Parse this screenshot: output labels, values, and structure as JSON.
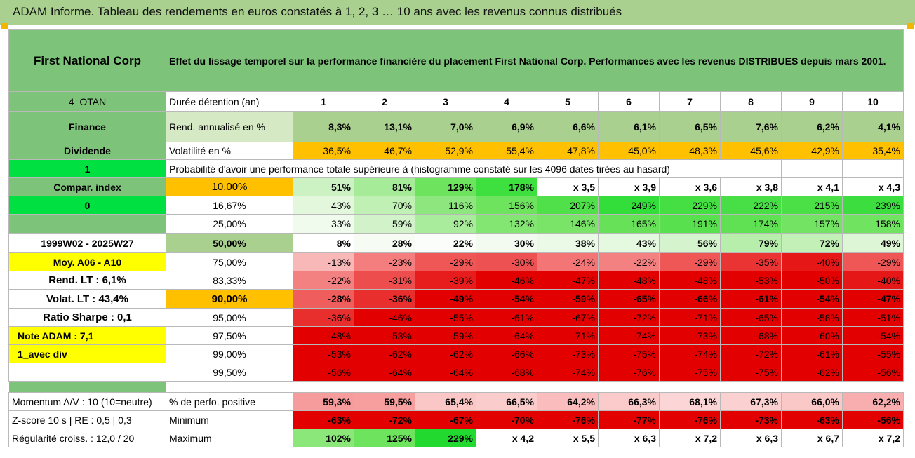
{
  "title": "ADAM Informe. Tableau des rendements en euros constatés à 1, 2, 3 … 10 ans avec les revenus connus distribués",
  "company": "First National Corp",
  "description": "Effet du lissage temporel sur la performance financière du placement First National Corp. Performances avec les revenus DISTRIBUES depuis mars 2001.",
  "left_labels": {
    "code": "4_OTAN",
    "sector": "Finance",
    "dividend": "Dividende",
    "one": "1",
    "compar": "Compar. index",
    "zero": "0",
    "period": "1999W02 - 2025W27",
    "moy": "Moy. A06 - A10",
    "rend_lt": "Rend. LT :    6,1%",
    "volat_lt": "Volat. LT :    43,4%",
    "sharpe": "Ratio Sharpe :    0,1",
    "note": "Note ADAM : 7,1",
    "avec_div": "1_avec div",
    "momentum": "Momentum A/V : 10 (10=neutre)",
    "zscore": "Z-score 10 s | RE : 0,5 | 0,3",
    "regularite": "Régularité croiss. : 12,0 / 20"
  },
  "row_labels": {
    "duree": "Durée détention (an)",
    "rend": "Rend. annualisé en %",
    "vol": "Volatilité en %",
    "proba": "Probabilité d'avoir une performance totale supérieure à (histogramme constaté sur les 4096 dates tirées au hasard)",
    "perfo": "% de perfo. positive",
    "min": "Minimum",
    "max": "Maximum"
  },
  "years": [
    "1",
    "2",
    "3",
    "4",
    "5",
    "6",
    "7",
    "8",
    "9",
    "10"
  ],
  "rend": [
    "8,3%",
    "13,1%",
    "7,0%",
    "6,9%",
    "6,6%",
    "6,1%",
    "6,5%",
    "7,6%",
    "6,2%",
    "4,1%"
  ],
  "vol": [
    "36,5%",
    "46,7%",
    "52,9%",
    "55,4%",
    "47,8%",
    "45,0%",
    "48,3%",
    "45,6%",
    "42,9%",
    "35,4%"
  ],
  "colors": {
    "header_green": "#7dc47a",
    "title_green": "#a9d08e",
    "lime": "#00e040",
    "orange": "#ffc000",
    "yellow": "#ffff00",
    "label_red": "#d40000"
  },
  "prob_rows": [
    {
      "q": "10,00%",
      "vals": [
        "51%",
        "81%",
        "129%",
        "178%",
        "x 3,5",
        "x 3,9",
        "x 3,6",
        "x 3,8",
        "x 4,1",
        "x 4,3"
      ],
      "bg": [
        "#ccf2c4",
        "#a6ec98",
        "#6ee45e",
        "#3ee040",
        "#ffffff",
        "#ffffff",
        "#ffffff",
        "#ffffff",
        "#ffffff",
        "#ffffff"
      ]
    },
    {
      "q": "16,67%",
      "vals": [
        "43%",
        "70%",
        "116%",
        "156%",
        "207%",
        "249%",
        "229%",
        "222%",
        "215%",
        "239%"
      ],
      "bg": [
        "#e2f7dc",
        "#c0f0b4",
        "#8de67e",
        "#6ee45e",
        "#4fe04a",
        "#33dd3a",
        "#45df44",
        "#48df46",
        "#4ce047",
        "#3cde3f"
      ]
    },
    {
      "q": "25,00%",
      "vals": [
        "33%",
        "59%",
        "92%",
        "132%",
        "146%",
        "165%",
        "191%",
        "174%",
        "157%",
        "158%"
      ],
      "bg": [
        "#f0fbee",
        "#d2f3ca",
        "#a9ec9b",
        "#84e672",
        "#79e468",
        "#67e258",
        "#58e04e",
        "#60e154",
        "#72e362",
        "#70e361"
      ]
    },
    {
      "q": "50,00%",
      "vals": [
        "8%",
        "28%",
        "22%",
        "30%",
        "38%",
        "43%",
        "56%",
        "79%",
        "72%",
        "49%"
      ],
      "bg": [
        "#ffffff",
        "#f6fcf4",
        "#fbfdfa",
        "#f3fbf1",
        "#ebf9e7",
        "#e5f8e0",
        "#d5f4cd",
        "#b8eeab",
        "#c2f0b6",
        "#ddf6d6"
      ]
    },
    {
      "q": "75,00%",
      "vals": [
        "-13%",
        "-23%",
        "-29%",
        "-30%",
        "-24%",
        "-22%",
        "-29%",
        "-35%",
        "-40%",
        "-29%"
      ],
      "bg": [
        "#f9b8b8",
        "#f47d7d",
        "#ef5757",
        "#ee5151",
        "#f37575",
        "#f48181",
        "#ef5757",
        "#ea3434",
        "#e61717",
        "#ef5757"
      ]
    },
    {
      "q": "83,33%",
      "vals": [
        "-22%",
        "-31%",
        "-39%",
        "-46%",
        "-47%",
        "-48%",
        "-48%",
        "-53%",
        "-50%",
        "-40%"
      ],
      "bg": [
        "#f48181",
        "#ee4d4d",
        "#e71d1d",
        "#e30000",
        "#e30000",
        "#e30000",
        "#e30000",
        "#e30000",
        "#e30000",
        "#e61717"
      ]
    },
    {
      "q": "90,00%",
      "vals": [
        "-28%",
        "-36%",
        "-49%",
        "-54%",
        "-59%",
        "-65%",
        "-66%",
        "-61%",
        "-54%",
        "-47%"
      ],
      "bg": [
        "#f05d5d",
        "#e92e2e",
        "#e30000",
        "#e30000",
        "#e30000",
        "#e30000",
        "#e30000",
        "#e30000",
        "#e30000",
        "#e30000"
      ]
    },
    {
      "q": "95,00%",
      "vals": [
        "-36%",
        "-46%",
        "-55%",
        "-61%",
        "-67%",
        "-72%",
        "-71%",
        "-65%",
        "-58%",
        "-51%"
      ],
      "bg": [
        "#e92e2e",
        "#e30000",
        "#e30000",
        "#e30000",
        "#e30000",
        "#e30000",
        "#e30000",
        "#e30000",
        "#e30000",
        "#e30000"
      ]
    },
    {
      "q": "97,50%",
      "vals": [
        "-48%",
        "-53%",
        "-59%",
        "-64%",
        "-71%",
        "-74%",
        "-73%",
        "-68%",
        "-60%",
        "-54%"
      ],
      "bg": [
        "#e30000",
        "#e30000",
        "#e30000",
        "#e30000",
        "#e30000",
        "#e30000",
        "#e30000",
        "#e30000",
        "#e30000",
        "#e30000"
      ]
    },
    {
      "q": "99,00%",
      "vals": [
        "-53%",
        "-62%",
        "-62%",
        "-66%",
        "-73%",
        "-75%",
        "-74%",
        "-72%",
        "-61%",
        "-55%"
      ],
      "bg": [
        "#e30000",
        "#e30000",
        "#e30000",
        "#e30000",
        "#e30000",
        "#e30000",
        "#e30000",
        "#e30000",
        "#e30000",
        "#e30000"
      ]
    },
    {
      "q": "99,50%",
      "vals": [
        "-56%",
        "-64%",
        "-64%",
        "-68%",
        "-74%",
        "-76%",
        "-75%",
        "-75%",
        "-62%",
        "-56%"
      ],
      "bg": [
        "#e30000",
        "#e30000",
        "#e30000",
        "#e30000",
        "#e30000",
        "#e30000",
        "#e30000",
        "#e30000",
        "#e30000",
        "#e30000"
      ]
    }
  ],
  "perfo": {
    "vals": [
      "59,3%",
      "59,5%",
      "65,4%",
      "66,5%",
      "64,2%",
      "66,3%",
      "68,1%",
      "67,3%",
      "66,0%",
      "62,2%"
    ],
    "bg": [
      "#f79c9c",
      "#f79e9e",
      "#fbc6c6",
      "#fbcccc",
      "#fabcbc",
      "#fbcaca",
      "#fcd6d6",
      "#fbd0d0",
      "#fbc8c8",
      "#f8aeae"
    ]
  },
  "minimum": {
    "vals": [
      "-63%",
      "-72%",
      "-67%",
      "-70%",
      "-76%",
      "-77%",
      "-76%",
      "-73%",
      "-63%",
      "-56%"
    ],
    "bg": [
      "#e30000",
      "#e30000",
      "#e30000",
      "#e30000",
      "#e30000",
      "#e30000",
      "#e30000",
      "#e30000",
      "#e30000",
      "#e30000"
    ]
  },
  "maximum": {
    "vals": [
      "102%",
      "125%",
      "229%",
      "x 4,2",
      "x 5,5",
      "x 6,3",
      "x 7,2",
      "x 6,3",
      "x 6,7",
      "x 7,2"
    ],
    "bg": [
      "#8be77a",
      "#6ee45e",
      "#22d930",
      "#ffffff",
      "#ffffff",
      "#ffffff",
      "#ffffff",
      "#ffffff",
      "#ffffff",
      "#ffffff"
    ]
  }
}
